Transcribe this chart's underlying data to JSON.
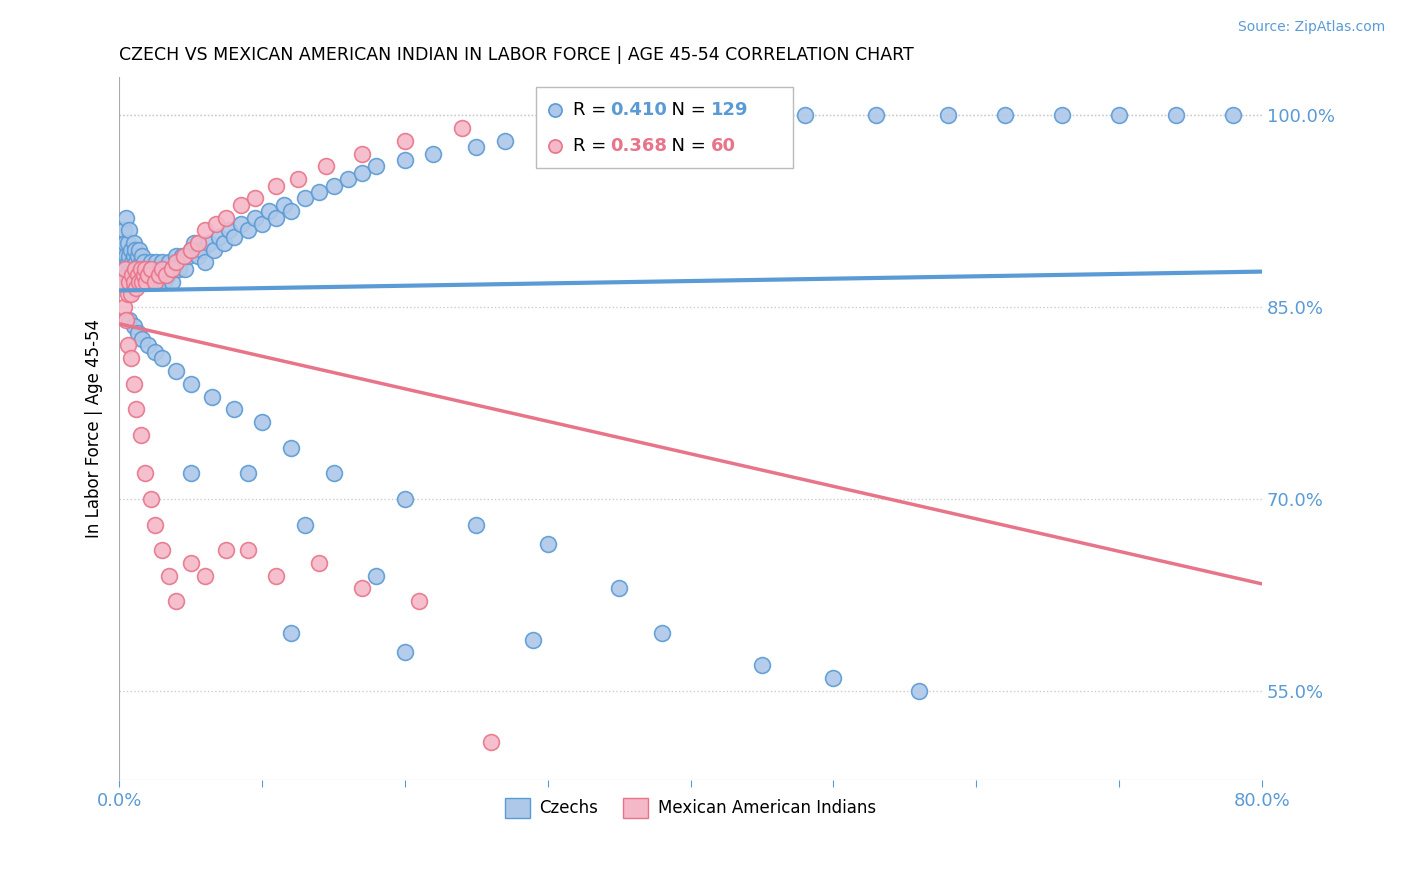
{
  "title": "CZECH VS MEXICAN AMERICAN INDIAN IN LABOR FORCE | AGE 45-54 CORRELATION CHART",
  "source": "Source: ZipAtlas.com",
  "ylabel": "In Labor Force | Age 45-54",
  "xmin": 0.0,
  "xmax": 0.8,
  "ymin": 0.48,
  "ymax": 1.03,
  "yticks": [
    0.55,
    0.7,
    0.85,
    1.0
  ],
  "ytick_labels": [
    "55.0%",
    "70.0%",
    "85.0%",
    "100.0%"
  ],
  "R_czech": 0.41,
  "N_czech": 129,
  "R_mexican": 0.368,
  "N_mexican": 60,
  "blue_color": "#5b9bd5",
  "pink_color": "#e8748a",
  "dot_blue": "#adc8e8",
  "dot_pink": "#f4b8c8",
  "czech_x": [
    0.002,
    0.003,
    0.003,
    0.004,
    0.004,
    0.005,
    0.005,
    0.005,
    0.006,
    0.006,
    0.007,
    0.007,
    0.007,
    0.008,
    0.008,
    0.009,
    0.009,
    0.01,
    0.01,
    0.01,
    0.011,
    0.011,
    0.012,
    0.012,
    0.013,
    0.013,
    0.014,
    0.014,
    0.015,
    0.015,
    0.016,
    0.016,
    0.017,
    0.017,
    0.018,
    0.019,
    0.02,
    0.021,
    0.022,
    0.023,
    0.024,
    0.025,
    0.026,
    0.027,
    0.028,
    0.029,
    0.03,
    0.031,
    0.032,
    0.034,
    0.035,
    0.037,
    0.038,
    0.04,
    0.042,
    0.044,
    0.046,
    0.048,
    0.05,
    0.052,
    0.055,
    0.058,
    0.06,
    0.063,
    0.066,
    0.07,
    0.073,
    0.077,
    0.08,
    0.085,
    0.09,
    0.095,
    0.1,
    0.105,
    0.11,
    0.115,
    0.12,
    0.13,
    0.14,
    0.15,
    0.16,
    0.17,
    0.18,
    0.2,
    0.22,
    0.25,
    0.27,
    0.3,
    0.33,
    0.36,
    0.4,
    0.44,
    0.48,
    0.53,
    0.58,
    0.62,
    0.66,
    0.7,
    0.74,
    0.78,
    0.007,
    0.01,
    0.013,
    0.016,
    0.02,
    0.025,
    0.03,
    0.04,
    0.05,
    0.065,
    0.08,
    0.1,
    0.12,
    0.15,
    0.2,
    0.25,
    0.3,
    0.35,
    0.05,
    0.09,
    0.13,
    0.18,
    0.12,
    0.2,
    0.38,
    0.29,
    0.45,
    0.5,
    0.56
  ],
  "czech_y": [
    0.87,
    0.895,
    0.91,
    0.88,
    0.9,
    0.875,
    0.89,
    0.92,
    0.885,
    0.9,
    0.87,
    0.89,
    0.91,
    0.88,
    0.895,
    0.87,
    0.885,
    0.875,
    0.89,
    0.9,
    0.88,
    0.895,
    0.87,
    0.885,
    0.875,
    0.89,
    0.88,
    0.895,
    0.87,
    0.885,
    0.875,
    0.89,
    0.87,
    0.885,
    0.875,
    0.87,
    0.88,
    0.875,
    0.885,
    0.87,
    0.88,
    0.875,
    0.885,
    0.87,
    0.88,
    0.875,
    0.885,
    0.87,
    0.88,
    0.875,
    0.885,
    0.87,
    0.88,
    0.89,
    0.88,
    0.89,
    0.88,
    0.89,
    0.895,
    0.9,
    0.89,
    0.895,
    0.885,
    0.9,
    0.895,
    0.905,
    0.9,
    0.91,
    0.905,
    0.915,
    0.91,
    0.92,
    0.915,
    0.925,
    0.92,
    0.93,
    0.925,
    0.935,
    0.94,
    0.945,
    0.95,
    0.955,
    0.96,
    0.965,
    0.97,
    0.975,
    0.98,
    0.985,
    0.99,
    0.995,
    1.0,
    1.0,
    1.0,
    1.0,
    1.0,
    1.0,
    1.0,
    1.0,
    1.0,
    1.0,
    0.84,
    0.835,
    0.83,
    0.825,
    0.82,
    0.815,
    0.81,
    0.8,
    0.79,
    0.78,
    0.77,
    0.76,
    0.74,
    0.72,
    0.7,
    0.68,
    0.665,
    0.63,
    0.72,
    0.72,
    0.68,
    0.64,
    0.595,
    0.58,
    0.595,
    0.59,
    0.57,
    0.56,
    0.55
  ],
  "mexican_x": [
    0.002,
    0.003,
    0.004,
    0.005,
    0.006,
    0.007,
    0.008,
    0.009,
    0.01,
    0.011,
    0.012,
    0.013,
    0.014,
    0.015,
    0.016,
    0.017,
    0.018,
    0.019,
    0.02,
    0.022,
    0.025,
    0.028,
    0.03,
    0.033,
    0.037,
    0.04,
    0.045,
    0.05,
    0.055,
    0.06,
    0.068,
    0.075,
    0.085,
    0.095,
    0.11,
    0.125,
    0.145,
    0.17,
    0.2,
    0.24,
    0.006,
    0.008,
    0.01,
    0.012,
    0.015,
    0.018,
    0.022,
    0.025,
    0.03,
    0.035,
    0.04,
    0.05,
    0.06,
    0.075,
    0.09,
    0.11,
    0.14,
    0.17,
    0.21,
    0.26
  ],
  "mexican_y": [
    0.87,
    0.85,
    0.88,
    0.84,
    0.86,
    0.87,
    0.86,
    0.875,
    0.87,
    0.88,
    0.865,
    0.875,
    0.87,
    0.88,
    0.87,
    0.875,
    0.88,
    0.87,
    0.875,
    0.88,
    0.87,
    0.875,
    0.88,
    0.875,
    0.88,
    0.885,
    0.89,
    0.895,
    0.9,
    0.91,
    0.915,
    0.92,
    0.93,
    0.935,
    0.945,
    0.95,
    0.96,
    0.97,
    0.98,
    0.99,
    0.82,
    0.81,
    0.79,
    0.77,
    0.75,
    0.72,
    0.7,
    0.68,
    0.66,
    0.64,
    0.62,
    0.65,
    0.64,
    0.66,
    0.66,
    0.64,
    0.65,
    0.63,
    0.62,
    0.51
  ]
}
